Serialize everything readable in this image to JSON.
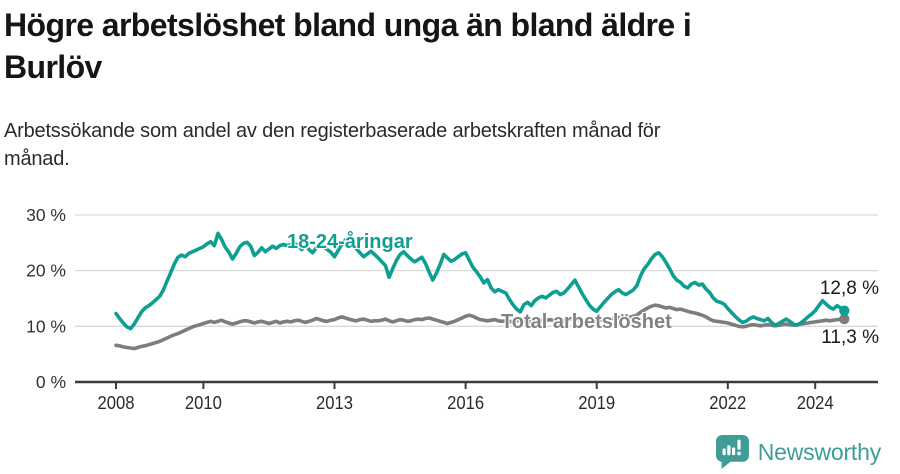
{
  "page": {
    "title_lines": [
      "Högre arbetslöshet bland unga än bland äldre i",
      "Burlöv"
    ],
    "subtitle_lines": [
      "Arbetssökande som andel av den registerbaserade arbetskraften månad för",
      "månad."
    ],
    "footer_brand": "Newsworthy"
  },
  "colors": {
    "youth_line": "#0f9f92",
    "total_line": "#7d7d7d",
    "axis": "#3b3b3b",
    "gridline": "#d9d9d9",
    "brand_teal": "#3e9d94"
  },
  "chart_data": {
    "type": "line",
    "title": "Högre arbetslöshet bland unga än bland äldre i Burlöv",
    "subtitle": "Arbetssökande som andel av den registerbaserade arbetskraften månad för månad.",
    "unit": "%",
    "frequency": "monthly",
    "x_start": "2008-01",
    "x_end": "2024-09",
    "ylim": [
      0,
      33
    ],
    "grid": "horizontal",
    "legend_position": "inline-labels",
    "y_ticks": [
      {
        "value": 0,
        "label": "0 %"
      },
      {
        "value": 10,
        "label": "10 %"
      },
      {
        "value": 20,
        "label": "20 %"
      },
      {
        "value": 30,
        "label": "30 %"
      }
    ],
    "x_ticks": [
      {
        "year": 2008,
        "label": "2008"
      },
      {
        "year": 2010,
        "label": "2010"
      },
      {
        "year": 2013,
        "label": "2013"
      },
      {
        "year": 2016,
        "label": "2016"
      },
      {
        "year": 2019,
        "label": "2019"
      },
      {
        "year": 2022,
        "label": "2022"
      },
      {
        "year": 2024,
        "label": "2024"
      }
    ],
    "series": [
      {
        "name": "18-24-åringar",
        "color": "#0f9f92",
        "end_label": "12,8 %",
        "end_value": 12.8,
        "values": [
          12.3,
          11.4,
          10.6,
          9.9,
          9.6,
          10.4,
          11.5,
          12.6,
          13.3,
          13.7,
          14.2,
          14.8,
          15.4,
          16.5,
          18.1,
          19.6,
          21.2,
          22.4,
          22.8,
          22.5,
          23.1,
          23.4,
          23.7,
          24.0,
          24.3,
          24.8,
          25.2,
          24.5,
          26.7,
          25.6,
          24.2,
          23.3,
          22.1,
          23.1,
          24.3,
          24.9,
          25.1,
          24.4,
          22.7,
          23.3,
          24.1,
          23.4,
          23.9,
          24.4,
          24.0,
          24.5,
          24.7,
          24.5,
          24.7,
          25.0,
          24.4,
          23.8,
          24.6,
          23.8,
          23.2,
          24.1,
          24.7,
          24.3,
          23.8,
          23.3,
          22.5,
          23.6,
          24.7,
          25.5,
          26.0,
          24.9,
          23.9,
          23.2,
          22.5,
          23.0,
          23.5,
          22.9,
          22.3,
          21.6,
          20.9,
          18.8,
          20.4,
          21.8,
          22.9,
          23.4,
          22.7,
          22.1,
          21.6,
          22.0,
          22.4,
          21.3,
          19.7,
          18.3,
          19.6,
          21.1,
          22.9,
          22.3,
          21.7,
          22.0,
          22.5,
          23.0,
          23.2,
          21.9,
          20.6,
          19.8,
          18.9,
          17.8,
          18.4,
          16.9,
          16.2,
          16.6,
          16.3,
          16.0,
          14.9,
          13.9,
          13.1,
          12.6,
          13.9,
          14.3,
          13.7,
          14.6,
          15.1,
          15.4,
          15.1,
          15.6,
          16.1,
          16.3,
          15.7,
          16.0,
          16.7,
          17.5,
          18.3,
          17.1,
          15.9,
          14.8,
          13.8,
          13.1,
          12.7,
          13.5,
          14.3,
          15.0,
          15.7,
          16.2,
          16.6,
          16.0,
          15.7,
          16.1,
          16.5,
          17.3,
          19.0,
          20.3,
          21.1,
          22.1,
          22.9,
          23.2,
          22.5,
          21.5,
          20.4,
          19.1,
          18.3,
          17.9,
          17.2,
          16.9,
          17.6,
          17.9,
          17.4,
          17.6,
          16.7,
          16.1,
          15.1,
          14.5,
          14.3,
          14.0,
          13.2,
          12.5,
          11.8,
          11.2,
          10.7,
          10.9,
          11.4,
          11.7,
          11.4,
          11.2,
          11.0,
          11.4,
          10.7,
          10.2,
          10.5,
          10.9,
          11.3,
          10.9,
          10.4,
          10.2,
          10.6,
          11.1,
          11.7,
          12.2,
          12.8,
          13.7,
          14.6,
          14.0,
          13.4,
          13.1,
          13.7,
          13.3,
          12.8
        ]
      },
      {
        "name": "Total arbetslöshet",
        "color": "#7d7d7d",
        "end_label": "11,3 %",
        "end_value": 11.3,
        "values": [
          6.6,
          6.5,
          6.3,
          6.2,
          6.1,
          6.0,
          6.2,
          6.4,
          6.5,
          6.7,
          6.9,
          7.1,
          7.3,
          7.6,
          7.9,
          8.2,
          8.5,
          8.7,
          9.0,
          9.3,
          9.6,
          9.9,
          10.1,
          10.3,
          10.5,
          10.7,
          10.9,
          10.7,
          10.9,
          11.1,
          10.8,
          10.6,
          10.4,
          10.6,
          10.8,
          11.0,
          11.0,
          10.8,
          10.6,
          10.8,
          10.9,
          10.7,
          10.5,
          10.7,
          10.9,
          10.6,
          10.8,
          10.9,
          10.8,
          11.0,
          11.1,
          10.9,
          10.7,
          10.9,
          11.1,
          11.4,
          11.2,
          11.0,
          10.9,
          11.1,
          11.2,
          11.5,
          11.7,
          11.5,
          11.3,
          11.1,
          11.0,
          11.2,
          11.3,
          11.1,
          10.9,
          11.0,
          11.0,
          11.1,
          11.3,
          11.0,
          10.8,
          11.0,
          11.2,
          11.1,
          10.9,
          11.0,
          11.2,
          11.3,
          11.2,
          11.4,
          11.5,
          11.3,
          11.1,
          10.9,
          10.7,
          10.5,
          10.7,
          10.9,
          11.2,
          11.5,
          11.8,
          12.0,
          11.8,
          11.5,
          11.2,
          11.1,
          11.0,
          11.1,
          11.2,
          11.0,
          10.9,
          11.0,
          10.9,
          10.8,
          11.0,
          11.1,
          11.1,
          11.0,
          10.8,
          10.9,
          11.0,
          11.1,
          11.0,
          11.2,
          11.1,
          11.0,
          10.9,
          11.0,
          11.1,
          11.3,
          11.4,
          11.2,
          11.0,
          10.9,
          10.8,
          10.9,
          11.0,
          11.1,
          11.3,
          11.1,
          11.3,
          11.5,
          11.6,
          11.5,
          11.4,
          11.6,
          11.8,
          12.0,
          12.5,
          12.9,
          13.3,
          13.6,
          13.8,
          13.7,
          13.5,
          13.3,
          13.4,
          13.2,
          13.0,
          13.1,
          12.9,
          12.7,
          12.5,
          12.4,
          12.2,
          12.0,
          11.7,
          11.3,
          11.0,
          10.9,
          10.8,
          10.7,
          10.6,
          10.4,
          10.2,
          10.0,
          9.9,
          10.0,
          10.2,
          10.3,
          10.2,
          10.1,
          10.2,
          10.3,
          10.2,
          10.1,
          10.2,
          10.3,
          10.4,
          10.3,
          10.2,
          10.3,
          10.4,
          10.5,
          10.6,
          10.7,
          10.8,
          10.9,
          11.0,
          11.1,
          11.0,
          11.1,
          11.2,
          11.2,
          11.3
        ]
      }
    ]
  }
}
